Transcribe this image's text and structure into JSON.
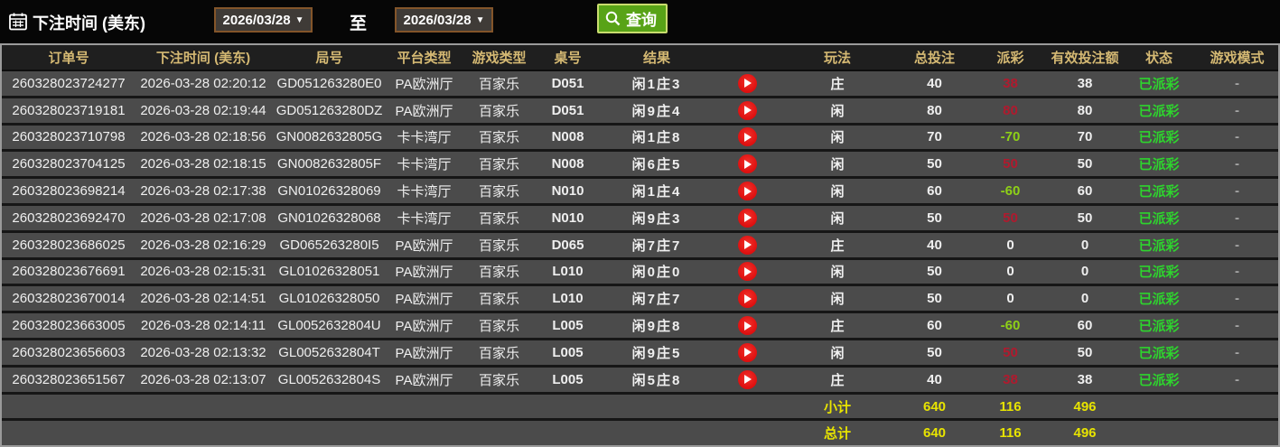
{
  "colors": {
    "header_text": "#d5b973",
    "row_background": "#4b4b4b",
    "payout_win_red": "#b01a2e",
    "payout_loss_green": "#8ed117",
    "status_paid_green": "#2ed32e",
    "summary_yellow": "#e8e400",
    "query_button_green": "#58a317",
    "date_select_border": "#83552a"
  },
  "filter_bar": {
    "calendar_icon": "calendar-icon",
    "label": "下注时间 (美东)",
    "date_from": "2026/03/28",
    "to_label": "至",
    "date_to": "2026/03/28",
    "dropdown_icon": "▼",
    "search_icon": "magnifier-icon",
    "query_label": "查询"
  },
  "table": {
    "columns": [
      "订单号",
      "下注时间 (美东)",
      "局号",
      "平台类型",
      "游戏类型",
      "桌号",
      "结果",
      "",
      "玩法",
      "总投注",
      "派彩",
      "有效投注额",
      "状态",
      "游戏模式"
    ],
    "play_icon": "play-video-icon",
    "rows": [
      {
        "order_id": "260328023724277",
        "bet_time": "2026-03-28 02:20:12",
        "round_id": "GD051263280E0",
        "platform": "PA欧洲厅",
        "game_type": "百家乐",
        "table_no": "D051",
        "result": "闲1庄3",
        "play": "庄",
        "total_bet": "40",
        "payout": "38",
        "valid_bet": "38",
        "status": "已派彩",
        "game_mode": "-"
      },
      {
        "order_id": "260328023719181",
        "bet_time": "2026-03-28 02:19:44",
        "round_id": "GD051263280DZ",
        "platform": "PA欧洲厅",
        "game_type": "百家乐",
        "table_no": "D051",
        "result": "闲9庄4",
        "play": "闲",
        "total_bet": "80",
        "payout": "80",
        "valid_bet": "80",
        "status": "已派彩",
        "game_mode": "-"
      },
      {
        "order_id": "260328023710798",
        "bet_time": "2026-03-28 02:18:56",
        "round_id": "GN0082632805G",
        "platform": "卡卡湾厅",
        "game_type": "百家乐",
        "table_no": "N008",
        "result": "闲1庄8",
        "play": "闲",
        "total_bet": "70",
        "payout": "-70",
        "valid_bet": "70",
        "status": "已派彩",
        "game_mode": "-"
      },
      {
        "order_id": "260328023704125",
        "bet_time": "2026-03-28 02:18:15",
        "round_id": "GN0082632805F",
        "platform": "卡卡湾厅",
        "game_type": "百家乐",
        "table_no": "N008",
        "result": "闲6庄5",
        "play": "闲",
        "total_bet": "50",
        "payout": "50",
        "valid_bet": "50",
        "status": "已派彩",
        "game_mode": "-"
      },
      {
        "order_id": "260328023698214",
        "bet_time": "2026-03-28 02:17:38",
        "round_id": "GN01026328069",
        "platform": "卡卡湾厅",
        "game_type": "百家乐",
        "table_no": "N010",
        "result": "闲1庄4",
        "play": "闲",
        "total_bet": "60",
        "payout": "-60",
        "valid_bet": "60",
        "status": "已派彩",
        "game_mode": "-"
      },
      {
        "order_id": "260328023692470",
        "bet_time": "2026-03-28 02:17:08",
        "round_id": "GN01026328068",
        "platform": "卡卡湾厅",
        "game_type": "百家乐",
        "table_no": "N010",
        "result": "闲9庄3",
        "play": "闲",
        "total_bet": "50",
        "payout": "50",
        "valid_bet": "50",
        "status": "已派彩",
        "game_mode": "-"
      },
      {
        "order_id": "260328023686025",
        "bet_time": "2026-03-28 02:16:29",
        "round_id": "GD065263280I5",
        "platform": "PA欧洲厅",
        "game_type": "百家乐",
        "table_no": "D065",
        "result": "闲7庄7",
        "play": "庄",
        "total_bet": "40",
        "payout": "0",
        "valid_bet": "0",
        "status": "已派彩",
        "game_mode": "-"
      },
      {
        "order_id": "260328023676691",
        "bet_time": "2026-03-28 02:15:31",
        "round_id": "GL01026328051",
        "platform": "PA欧洲厅",
        "game_type": "百家乐",
        "table_no": "L010",
        "result": "闲0庄0",
        "play": "闲",
        "total_bet": "50",
        "payout": "0",
        "valid_bet": "0",
        "status": "已派彩",
        "game_mode": "-"
      },
      {
        "order_id": "260328023670014",
        "bet_time": "2026-03-28 02:14:51",
        "round_id": "GL01026328050",
        "platform": "PA欧洲厅",
        "game_type": "百家乐",
        "table_no": "L010",
        "result": "闲7庄7",
        "play": "闲",
        "total_bet": "50",
        "payout": "0",
        "valid_bet": "0",
        "status": "已派彩",
        "game_mode": "-"
      },
      {
        "order_id": "260328023663005",
        "bet_time": "2026-03-28 02:14:11",
        "round_id": "GL0052632804U",
        "platform": "PA欧洲厅",
        "game_type": "百家乐",
        "table_no": "L005",
        "result": "闲9庄8",
        "play": "庄",
        "total_bet": "60",
        "payout": "-60",
        "valid_bet": "60",
        "status": "已派彩",
        "game_mode": "-"
      },
      {
        "order_id": "260328023656603",
        "bet_time": "2026-03-28 02:13:32",
        "round_id": "GL0052632804T",
        "platform": "PA欧洲厅",
        "game_type": "百家乐",
        "table_no": "L005",
        "result": "闲9庄5",
        "play": "闲",
        "total_bet": "50",
        "payout": "50",
        "valid_bet": "50",
        "status": "已派彩",
        "game_mode": "-"
      },
      {
        "order_id": "260328023651567",
        "bet_time": "2026-03-28 02:13:07",
        "round_id": "GL0052632804S",
        "platform": "PA欧洲厅",
        "game_type": "百家乐",
        "table_no": "L005",
        "result": "闲5庄8",
        "play": "庄",
        "total_bet": "40",
        "payout": "38",
        "valid_bet": "38",
        "status": "已派彩",
        "game_mode": "-"
      }
    ],
    "subtotal": {
      "label": "小计",
      "total_bet": "640",
      "payout": "116",
      "valid_bet": "496"
    },
    "grand_total": {
      "label": "总计",
      "total_bet": "640",
      "payout": "116",
      "valid_bet": "496"
    }
  }
}
